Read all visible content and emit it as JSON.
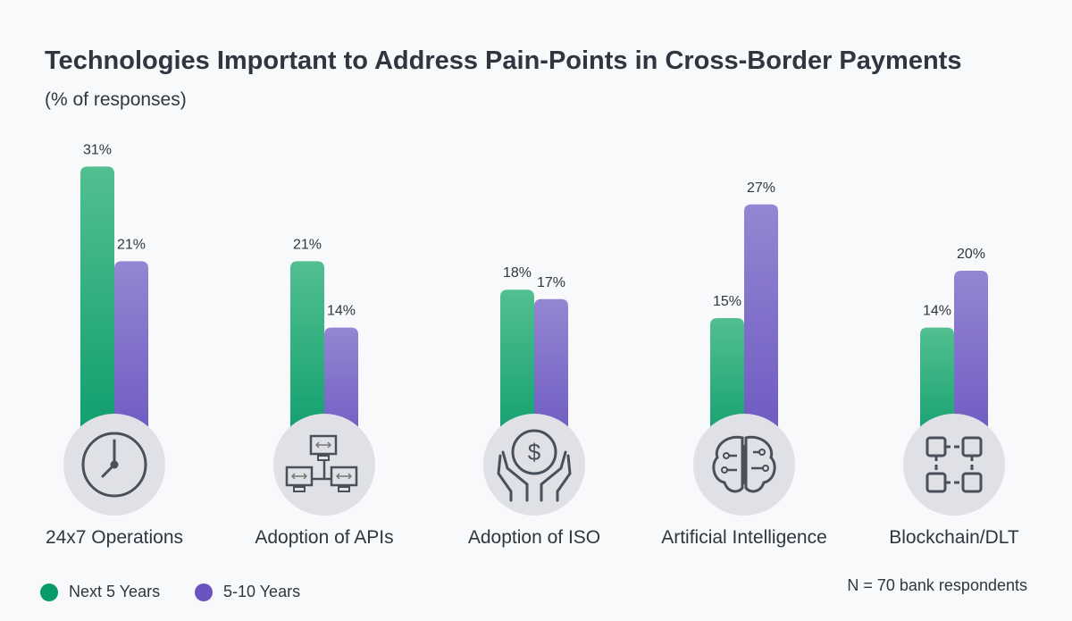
{
  "chart_data": {
    "type": "bar",
    "title": "Technologies Important to Address Pain-Points in Cross-Border Payments",
    "subtitle": "(% of responses)",
    "categories": [
      "24x7 Operations",
      "Adoption of APIs",
      "Adoption of ISO",
      "Artificial Intelligence",
      "Blockchain/DLT"
    ],
    "icons": [
      "clock-icon",
      "networked-computers-icon",
      "hands-dollar-coin-icon",
      "brain-circuit-icon",
      "blockchain-blocks-icon"
    ],
    "series": [
      {
        "name": "Next 5 Years",
        "values": [
          31,
          21,
          18,
          15,
          14
        ],
        "color": "#0a9b6a"
      },
      {
        "name": "5-10 Years",
        "values": [
          21,
          14,
          17,
          27,
          20
        ],
        "color": "#6a55c0"
      }
    ],
    "unit": "%",
    "grid": false,
    "legend": "bottom-left",
    "note": "N = 70 bank respondents"
  }
}
